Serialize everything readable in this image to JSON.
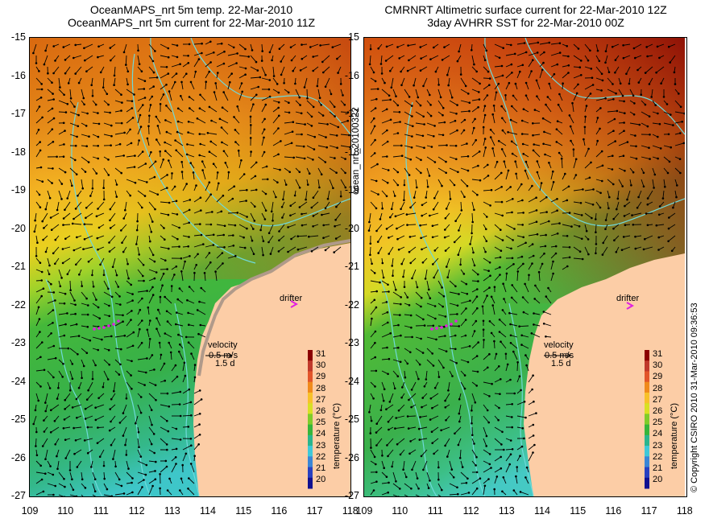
{
  "titles": {
    "left_line1": "OceanMAPS_nrt 5m temp. 22-Mar-2010",
    "left_line2": "OceanMAPS_nrt 5m current for 22-Mar-2010 11Z",
    "right_line1": "CMRNRT Altimetric surface current for 22-Mar-2010 12Z",
    "right_line2": "3day AVHRR SST for 22-Mar-2010 00Z"
  },
  "y_ticks": [
    "-15",
    "-16",
    "-17",
    "-18",
    "-19",
    "-20",
    "-21",
    "-22",
    "-23",
    "-24",
    "-25",
    "-26",
    "-27"
  ],
  "x_ticks": [
    "109",
    "110",
    "111",
    "112",
    "113",
    "114",
    "115",
    "116",
    "117",
    "118"
  ],
  "legend": {
    "drifter": "drifter",
    "velocity": "velocity",
    "speed": "0.5 m/s",
    "days": "1.5 d"
  },
  "colorbar": {
    "title": "temperature (°C)",
    "ticks": [
      "31",
      "30",
      "29",
      "28",
      "27",
      "26",
      "25",
      "24",
      "23",
      "22",
      "21",
      "20"
    ],
    "colors": [
      "#8b0000",
      "#c0392b",
      "#e2552a",
      "#f08a1c",
      "#f7c12a",
      "#d8e024",
      "#7fcc2a",
      "#36b53a",
      "#2ab58d",
      "#3fc8d8",
      "#3a86d6",
      "#2840c0",
      "#101090"
    ]
  },
  "side_labels": {
    "left": "ocean_nrt_20100322",
    "right": "© Copyright CSIRO 2010   31-Mar-2010 09:36:53"
  },
  "colors": {
    "land": "#fccda6",
    "coast": "#6fd9d9",
    "drifter_marker": "#e020e0",
    "arrow": "#000000"
  }
}
